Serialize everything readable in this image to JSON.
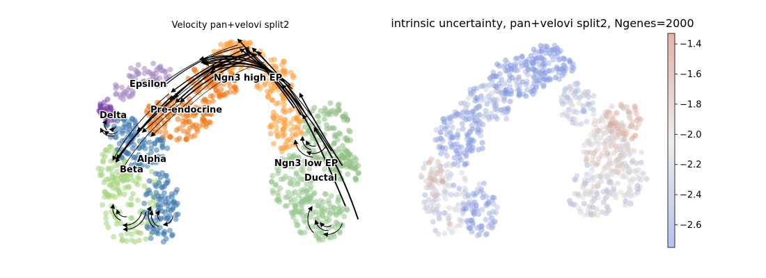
{
  "chart_data": [
    {
      "type": "scatter",
      "title": "Velocity pan+velovi split2",
      "xlabel": "",
      "ylabel": "",
      "grid": false,
      "axes_visible": false,
      "overlay": "velocity stream lines with arrowheads",
      "clusters": [
        {
          "name": "Epsilon",
          "color": "#a889c4"
        },
        {
          "name": "Ngn3 high EP",
          "color": "#ff9e3c"
        },
        {
          "name": "Delta",
          "color": "#7d3cab"
        },
        {
          "name": "Pre-endocrine",
          "color": "#ef7a1a"
        },
        {
          "name": "Alpha",
          "color": "#3b77ae"
        },
        {
          "name": "Beta",
          "color": "#a3d47a"
        },
        {
          "name": "Ngn3 low EP",
          "color": "#8fbf84"
        },
        {
          "name": "Ductal",
          "color": "#97c68e"
        }
      ]
    },
    {
      "type": "scatter",
      "title": "intrinsic uncertainty, pan+velovi split2, Ngenes=2000",
      "xlabel": "",
      "ylabel": "",
      "grid": false,
      "axes_visible": false,
      "colormap": "coolwarm",
      "colorbar": {
        "vmin": -2.75,
        "vmax": -1.33,
        "ticks": [
          -1.4,
          -1.6,
          -1.8,
          -2.0,
          -2.2,
          -2.4,
          -2.6
        ],
        "tick_labels": [
          "−1.4",
          "−1.6",
          "−1.8",
          "−2.0",
          "−2.2",
          "−2.4",
          "−2.6"
        ]
      }
    }
  ]
}
